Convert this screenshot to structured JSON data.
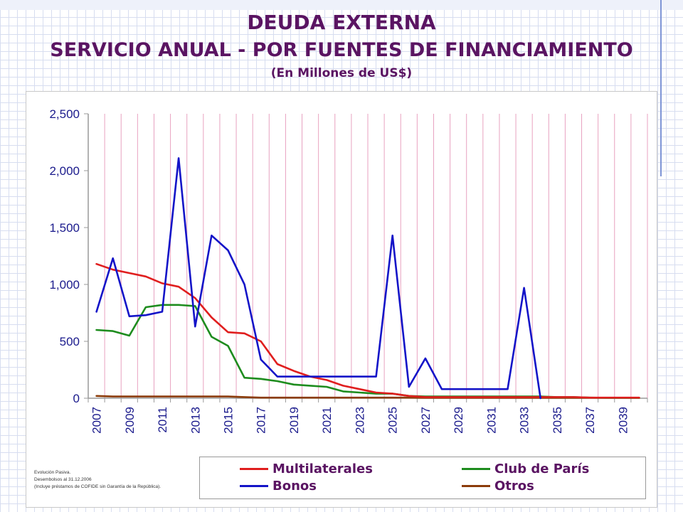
{
  "titles": {
    "line1": "DEUDA EXTERNA",
    "line2": "SERVICIO ANUAL - POR FUENTES DE FINANCIAMIENTO",
    "line3": "(En Millones de US$)"
  },
  "notes": {
    "line1": "Evolución Pasiva.",
    "line2": "Desembolsos al 31.12.2006",
    "line3": "(Incluye préstamos de COFIDE sin Garantía de la República)."
  },
  "colors": {
    "title": "#5a1462",
    "axis_text": "#1a1a8c",
    "vgrid": "#e8a2c0",
    "Multilaterales": "#e01e1e",
    "Bonos": "#1414c8",
    "Club de París": "#1e8c1e",
    "Otros": "#8c3c0a"
  },
  "chart_data": {
    "type": "line",
    "title": "SERVICIO ANUAL - POR FUENTES DE FINANCIAMIENTO",
    "xlabel": "",
    "ylabel": "",
    "ylim": [
      0,
      2500
    ],
    "y_ticks": [
      0,
      500,
      1000,
      1500,
      2000,
      2500
    ],
    "y_tick_labels": [
      "0",
      "500",
      "1,000",
      "1,500",
      "2,000",
      "2,500"
    ],
    "x_tick_labels": [
      "2007",
      "2009",
      "2011",
      "2013",
      "2015",
      "2017",
      "2019",
      "2021",
      "2023",
      "2025",
      "2027",
      "2029",
      "2031",
      "2033",
      "2035",
      "2037",
      "2039"
    ],
    "x": [
      2007,
      2008,
      2009,
      2010,
      2011,
      2012,
      2013,
      2014,
      2015,
      2016,
      2017,
      2018,
      2019,
      2020,
      2021,
      2022,
      2023,
      2024,
      2025,
      2026,
      2027,
      2028,
      2029,
      2030,
      2031,
      2032,
      2033,
      2034,
      2035,
      2036,
      2037,
      2038,
      2039,
      2040
    ],
    "grid": "vertical",
    "legend_position": "bottom",
    "series": [
      {
        "name": "Multilaterales",
        "values": [
          1180,
          1130,
          1100,
          1070,
          1010,
          980,
          880,
          710,
          580,
          570,
          500,
          300,
          240,
          190,
          160,
          110,
          80,
          50,
          40,
          20,
          10,
          10,
          10,
          10,
          10,
          10,
          10,
          10,
          10,
          10,
          5,
          5,
          5,
          5
        ]
      },
      {
        "name": "Bonos",
        "values": [
          760,
          1230,
          720,
          730,
          760,
          2110,
          630,
          1430,
          1300,
          1000,
          340,
          190,
          190,
          190,
          190,
          190,
          190,
          190,
          1430,
          100,
          350,
          80,
          80,
          80,
          80,
          80,
          970,
          0,
          null,
          null,
          null,
          null,
          null,
          null
        ]
      },
      {
        "name": "Club de París",
        "values": [
          600,
          590,
          550,
          800,
          820,
          820,
          810,
          540,
          460,
          180,
          170,
          150,
          120,
          110,
          100,
          60,
          50,
          40,
          40,
          20,
          15,
          15,
          15,
          15,
          15,
          15,
          15,
          15,
          10,
          10,
          5,
          3,
          3,
          3
        ]
      },
      {
        "name": "Otros",
        "values": [
          20,
          15,
          15,
          15,
          15,
          15,
          15,
          15,
          15,
          10,
          5,
          5,
          5,
          5,
          5,
          5,
          5,
          5,
          5,
          5,
          3,
          3,
          3,
          3,
          3,
          3,
          3,
          3,
          3,
          3,
          3,
          3,
          3,
          3
        ]
      }
    ]
  }
}
